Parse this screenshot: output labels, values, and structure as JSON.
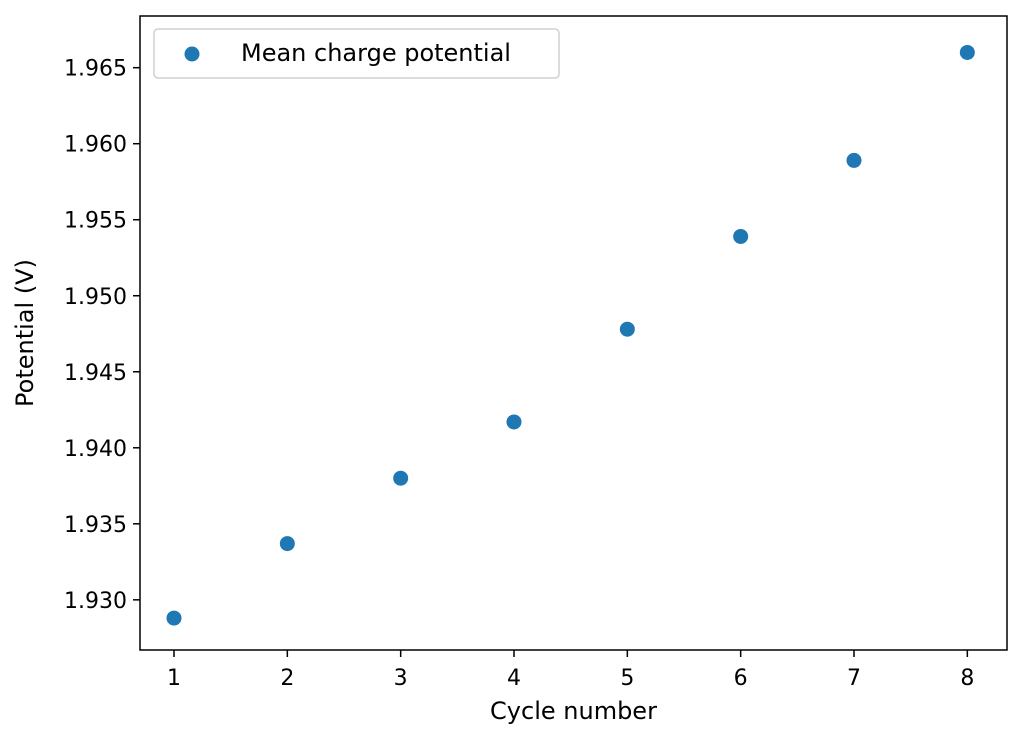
{
  "chart_data": {
    "type": "scatter",
    "xlabel": "Cycle number",
    "ylabel": "Potential (V)",
    "xlim": [
      0.7,
      8.35
    ],
    "ylim": [
      1.9267,
      1.9684
    ],
    "xticks": [
      1,
      2,
      3,
      4,
      5,
      6,
      7,
      8
    ],
    "yticks": [
      1.93,
      1.935,
      1.94,
      1.945,
      1.95,
      1.955,
      1.96,
      1.965
    ],
    "ytick_labels": [
      "1.930",
      "1.935",
      "1.940",
      "1.945",
      "1.950",
      "1.955",
      "1.960",
      "1.965"
    ],
    "grid": false,
    "legend_position": "top-left",
    "series": [
      {
        "name": "Mean charge potential",
        "color": "#1f77b4",
        "x": [
          1,
          2,
          3,
          4,
          5,
          6,
          7,
          8
        ],
        "y": [
          1.9288,
          1.9337,
          1.938,
          1.9417,
          1.9478,
          1.9539,
          1.9589,
          1.966
        ]
      }
    ]
  }
}
